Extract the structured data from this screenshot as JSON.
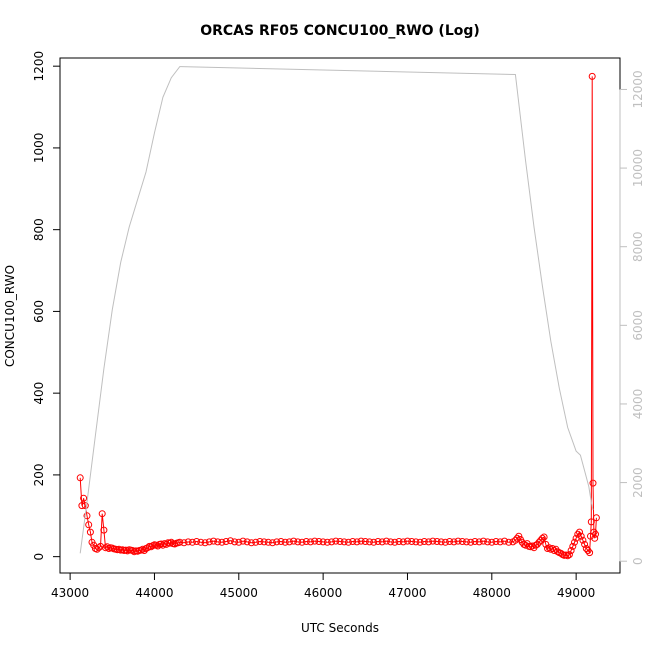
{
  "chart_data": {
    "type": "line",
    "title": "ORCAS RF05 CONCU100_RWO (Log)",
    "xlabel": "UTC Seconds",
    "ylabel": "CONCU100_RWO",
    "xlim": [
      42880,
      49520
    ],
    "ylim": [
      -40,
      1220
    ],
    "y2lim": [
      -300,
      12800
    ],
    "x_ticks": [
      43000,
      44000,
      45000,
      46000,
      47000,
      48000,
      49000
    ],
    "y_ticks": [
      0,
      200,
      400,
      600,
      800,
      1000,
      1200
    ],
    "y2_ticks": [
      0,
      2000,
      4000,
      6000,
      8000,
      10000,
      12000
    ],
    "grid": false,
    "legend": "none",
    "colors": {
      "primary": "#ff0000",
      "secondary": "#bfbfbf"
    },
    "series": [
      {
        "axis": "left",
        "style": "line+points",
        "color": "#ff0000",
        "x": [
          43120,
          43140,
          43160,
          43180,
          43200,
          43220,
          43240,
          43260,
          43280,
          43300,
          43320,
          43340,
          43360,
          43380,
          43400,
          43420,
          43440,
          43460,
          43480,
          43500,
          43520,
          43540,
          43560,
          43580,
          43600,
          43620,
          43640,
          43660,
          43680,
          43700,
          43720,
          43740,
          43760,
          43780,
          43800,
          43820,
          43840,
          43860,
          43880,
          43900,
          43920,
          43940,
          43960,
          43980,
          44000,
          44020,
          44040,
          44060,
          44080,
          44100,
          44120,
          44140,
          44160,
          44180,
          44200,
          44220,
          44240,
          44260,
          44280,
          44300,
          44350,
          44400,
          44450,
          44500,
          44550,
          44600,
          44650,
          44700,
          44750,
          44800,
          44850,
          44900,
          44950,
          45000,
          45050,
          45100,
          45150,
          45200,
          45250,
          45300,
          45350,
          45400,
          45450,
          45500,
          45550,
          45600,
          45650,
          45700,
          45750,
          45800,
          45850,
          45900,
          45950,
          46000,
          46050,
          46100,
          46150,
          46200,
          46250,
          46300,
          46350,
          46400,
          46450,
          46500,
          46550,
          46600,
          46650,
          46700,
          46750,
          46800,
          46850,
          46900,
          46950,
          47000,
          47050,
          47100,
          47150,
          47200,
          47250,
          47300,
          47350,
          47400,
          47450,
          47500,
          47550,
          47600,
          47650,
          47700,
          47750,
          47800,
          47850,
          47900,
          47950,
          48000,
          48050,
          48100,
          48150,
          48200,
          48250,
          48280,
          48300,
          48320,
          48340,
          48360,
          48380,
          48400,
          48420,
          48440,
          48460,
          48480,
          48500,
          48520,
          48540,
          48560,
          48580,
          48600,
          48620,
          48640,
          48660,
          48680,
          48700,
          48720,
          48740,
          48760,
          48780,
          48800,
          48820,
          48840,
          48860,
          48880,
          48900,
          48920,
          48940,
          48960,
          48980,
          49000,
          49020,
          49040,
          49060,
          49080,
          49100,
          49120,
          49140,
          49160,
          49170,
          49180,
          49190,
          49200,
          49210,
          49220,
          49230,
          49240
        ],
        "y": [
          193,
          125,
          143,
          125,
          100,
          78,
          60,
          35,
          28,
          20,
          18,
          22,
          25,
          105,
          65,
          22,
          24,
          20,
          22,
          21,
          19,
          18,
          17,
          18,
          16,
          17,
          15,
          16,
          14,
          17,
          16,
          15,
          12,
          14,
          13,
          15,
          16,
          18,
          15,
          20,
          22,
          25,
          24,
          27,
          29,
          28,
          26,
          30,
          31,
          28,
          32,
          30,
          34,
          33,
          35,
          32,
          31,
          33,
          34,
          35,
          34,
          36,
          35,
          37,
          35,
          34,
          36,
          38,
          36,
          35,
          37,
          39,
          36,
          35,
          38,
          36,
          34,
          35,
          37,
          36,
          35,
          34,
          36,
          37,
          35,
          36,
          38,
          36,
          35,
          37,
          36,
          38,
          37,
          36,
          35,
          36,
          38,
          37,
          36,
          35,
          37,
          36,
          38,
          37,
          36,
          35,
          37,
          36,
          38,
          36,
          35,
          37,
          36,
          38,
          37,
          36,
          35,
          37,
          36,
          38,
          37,
          36,
          35,
          37,
          36,
          38,
          37,
          36,
          35,
          37,
          36,
          38,
          36,
          35,
          37,
          36,
          38,
          35,
          36,
          40,
          45,
          50,
          42,
          35,
          30,
          28,
          32,
          25,
          24,
          26,
          22,
          28,
          30,
          35,
          40,
          45,
          48,
          30,
          20,
          22,
          18,
          20,
          15,
          18,
          12,
          10,
          8,
          5,
          3,
          4,
          2,
          5,
          15,
          25,
          35,
          45,
          55,
          60,
          50,
          40,
          30,
          20,
          15,
          10,
          50,
          85,
          1175,
          180,
          60,
          45,
          55,
          95
        ]
      },
      {
        "axis": "right",
        "style": "line",
        "color": "#bfbfbf",
        "x": [
          43120,
          43200,
          43300,
          43400,
          43500,
          43600,
          43700,
          43800,
          43900,
          44000,
          44100,
          44200,
          44300,
          44320,
          48280,
          48400,
          48500,
          48600,
          48700,
          48800,
          48900,
          49000,
          49050,
          49100,
          49150,
          49180,
          49200
        ],
        "y": [
          200,
          1500,
          3200,
          4900,
          6400,
          7600,
          8500,
          9200,
          9900,
          10900,
          11800,
          12300,
          12580,
          12580,
          12380,
          10200,
          8500,
          7000,
          5600,
          4400,
          3400,
          2800,
          2700,
          2300,
          1900,
          1500,
          1300
        ]
      }
    ]
  }
}
